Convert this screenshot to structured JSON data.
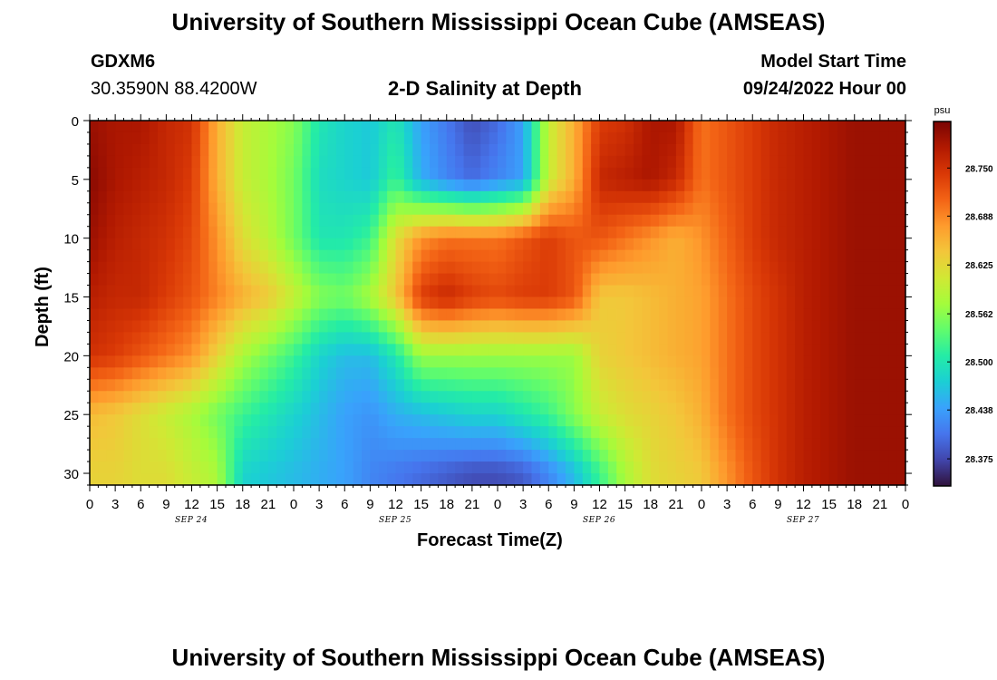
{
  "page": {
    "title": "University of Southern Mississippi Ocean Cube (AMSEAS)",
    "footer_title": "University of Southern Mississippi Ocean Cube (AMSEAS)",
    "station": "GDXM6",
    "coords": "30.3590N  88.4200W",
    "plot_title": "2-D Salinity at Depth",
    "model_start_label": "Model Start Time",
    "model_start_value": "09/24/2022 Hour 00"
  },
  "chart_data": {
    "type": "heatmap",
    "title": "2-D Salinity at Depth",
    "xlabel": "Forecast Time(Z)",
    "ylabel": "Depth (ft)",
    "colorbar_unit": "psu",
    "x_tick_labels": [
      "0",
      "3",
      "6",
      "9",
      "12",
      "15",
      "18",
      "21",
      "0",
      "3",
      "6",
      "9",
      "12",
      "15",
      "18",
      "21",
      "0",
      "3",
      "6",
      "9",
      "12",
      "15",
      "18",
      "21",
      "0",
      "3",
      "6",
      "9",
      "12",
      "15",
      "18",
      "21",
      "0"
    ],
    "x_date_labels": [
      "SEP 24",
      "SEP 25",
      "SEP 26",
      "SEP 27"
    ],
    "x_range_hours": [
      0,
      96
    ],
    "y_range_ft": [
      0,
      31
    ],
    "y_ticks": [
      0,
      5,
      10,
      15,
      20,
      25,
      30
    ],
    "y_inverted": true,
    "colorbar_ticks": [
      "28.750",
      "28.688",
      "28.625",
      "28.562",
      "28.500",
      "28.438",
      "28.375"
    ],
    "value_range": [
      28.34,
      28.81
    ],
    "colorscale": [
      "#30123b",
      "#4145ab",
      "#4675ed",
      "#39a2fc",
      "#1bcfd4",
      "#24eca6",
      "#61fc6c",
      "#a4fc3b",
      "#d1e834",
      "#f3c63a",
      "#fe9b2d",
      "#f36315",
      "#d93806",
      "#b11901",
      "#7a0403"
    ],
    "grid_hours": [
      0,
      3,
      6,
      9,
      12,
      15,
      18,
      21,
      24,
      27,
      30,
      33,
      36,
      39,
      42,
      45,
      48,
      51,
      54,
      57,
      60,
      63,
      66,
      69,
      72,
      75,
      78,
      81,
      84,
      87,
      90,
      93,
      96
    ],
    "grid_depths_ft": [
      0,
      5,
      10,
      15,
      20,
      25,
      30
    ],
    "salinity_psu": [
      [
        28.79,
        28.78,
        28.78,
        28.76,
        28.75,
        28.66,
        28.6,
        28.58,
        28.56,
        28.5,
        28.48,
        28.47,
        28.5,
        28.44,
        28.41,
        28.38,
        28.4,
        28.44,
        28.6,
        28.66,
        28.74,
        28.75,
        28.78,
        28.78,
        28.7,
        28.72,
        28.74,
        28.76,
        28.77,
        28.78,
        28.79,
        28.79,
        28.79
      ],
      [
        28.8,
        28.78,
        28.77,
        28.76,
        28.74,
        28.66,
        28.6,
        28.58,
        28.55,
        28.49,
        28.48,
        28.47,
        28.52,
        28.45,
        28.42,
        28.4,
        28.42,
        28.44,
        28.6,
        28.66,
        28.76,
        28.77,
        28.78,
        28.76,
        28.7,
        28.72,
        28.74,
        28.76,
        28.77,
        28.78,
        28.79,
        28.79,
        28.79
      ],
      [
        28.79,
        28.77,
        28.76,
        28.75,
        28.73,
        28.68,
        28.62,
        28.59,
        28.55,
        28.5,
        28.5,
        28.52,
        28.62,
        28.68,
        28.7,
        28.7,
        28.7,
        28.72,
        28.74,
        28.72,
        28.72,
        28.7,
        28.68,
        28.66,
        28.68,
        28.71,
        28.74,
        28.76,
        28.77,
        28.78,
        28.79,
        28.79,
        28.79
      ],
      [
        28.77,
        28.76,
        28.76,
        28.74,
        28.72,
        28.69,
        28.66,
        28.64,
        28.6,
        28.56,
        28.55,
        28.58,
        28.64,
        28.74,
        28.76,
        28.74,
        28.73,
        28.74,
        28.74,
        28.72,
        28.64,
        28.64,
        28.65,
        28.66,
        28.67,
        28.7,
        28.73,
        28.75,
        28.77,
        28.78,
        28.79,
        28.79,
        28.79
      ],
      [
        28.75,
        28.74,
        28.72,
        28.7,
        28.68,
        28.63,
        28.58,
        28.55,
        28.52,
        28.48,
        28.46,
        28.46,
        28.5,
        28.57,
        28.57,
        28.57,
        28.57,
        28.57,
        28.57,
        28.57,
        28.63,
        28.64,
        28.65,
        28.66,
        28.67,
        28.7,
        28.73,
        28.75,
        28.77,
        28.78,
        28.79,
        28.79,
        28.79
      ],
      [
        28.65,
        28.64,
        28.62,
        28.6,
        28.58,
        28.55,
        28.52,
        28.5,
        28.48,
        28.46,
        28.44,
        28.43,
        28.45,
        28.46,
        28.47,
        28.48,
        28.48,
        28.5,
        28.52,
        28.56,
        28.6,
        28.62,
        28.63,
        28.64,
        28.66,
        28.7,
        28.73,
        28.75,
        28.77,
        28.78,
        28.79,
        28.79,
        28.79
      ],
      [
        28.63,
        28.63,
        28.62,
        28.62,
        28.6,
        28.58,
        28.48,
        28.47,
        28.46,
        28.45,
        28.44,
        28.42,
        28.41,
        28.4,
        28.39,
        28.38,
        28.38,
        28.39,
        28.42,
        28.46,
        28.52,
        28.58,
        28.62,
        28.63,
        28.64,
        28.68,
        28.72,
        28.75,
        28.77,
        28.78,
        28.79,
        28.79,
        28.79
      ]
    ]
  }
}
